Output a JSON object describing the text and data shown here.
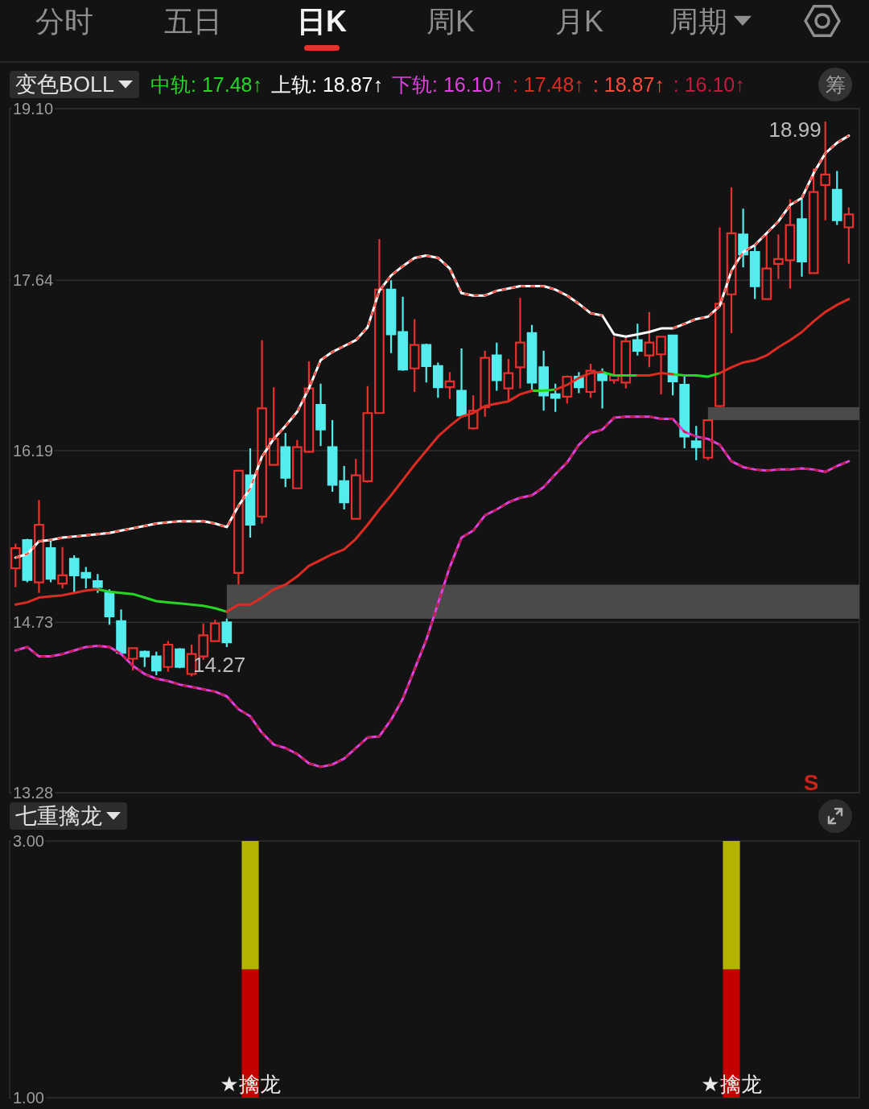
{
  "chart_data": [
    {
      "type": "other",
      "annotations": [
        "分时",
        "五日",
        "日K",
        "周K",
        "月K",
        "周期"
      ]
    },
    {
      "type": "candlestick",
      "title": "变色BOLL",
      "categories": [
        null,
        null,
        null,
        null,
        null,
        null,
        null,
        null,
        null,
        null,
        null,
        null,
        null,
        null,
        null,
        null,
        null,
        null,
        null,
        null,
        null,
        null,
        null,
        null,
        null,
        null,
        null,
        null,
        null,
        null,
        null,
        null,
        null,
        null,
        null,
        null,
        null,
        null,
        null,
        null,
        null,
        null,
        null,
        null,
        null,
        null,
        null,
        null,
        null,
        null,
        null,
        null,
        null,
        null,
        null,
        null,
        null,
        null,
        null,
        null,
        null,
        null,
        null,
        null,
        null,
        null,
        null,
        null,
        null,
        null,
        null,
        null
      ],
      "ohlc": [
        [
          15.19,
          15.4,
          15.03,
          15.36
        ],
        [
          15.43,
          15.44,
          15.07,
          15.09
        ],
        [
          15.07,
          15.77,
          14.98,
          15.56
        ],
        [
          15.36,
          15.44,
          15.07,
          15.1
        ],
        [
          15.06,
          15.37,
          15.02,
          15.13
        ],
        [
          15.27,
          15.3,
          14.98,
          15.13
        ],
        [
          15.15,
          15.2,
          15.02,
          15.11
        ],
        [
          15.08,
          15.14,
          14.98,
          15.03
        ],
        [
          14.98,
          15.01,
          14.71,
          14.78
        ],
        [
          14.74,
          14.84,
          14.46,
          14.47
        ],
        [
          14.42,
          14.51,
          14.32,
          14.51
        ],
        [
          14.48,
          14.49,
          14.35,
          14.44
        ],
        [
          14.44,
          14.48,
          14.28,
          14.32
        ],
        [
          14.35,
          14.57,
          14.31,
          14.54
        ],
        [
          14.5,
          14.51,
          14.34,
          14.35
        ],
        [
          14.29,
          14.54,
          14.27,
          14.46
        ],
        [
          14.44,
          14.72,
          14.41,
          14.62
        ],
        [
          14.57,
          14.75,
          14.57,
          14.72
        ],
        [
          14.73,
          14.76,
          14.52,
          14.56
        ],
        [
          15.15,
          16.02,
          15.05,
          16.02
        ],
        [
          15.98,
          16.21,
          15.45,
          15.56
        ],
        [
          15.63,
          17.13,
          15.57,
          16.55
        ],
        [
          16.07,
          16.73,
          16.07,
          16.29
        ],
        [
          16.22,
          16.34,
          15.88,
          15.96
        ],
        [
          15.87,
          16.28,
          15.87,
          16.22
        ],
        [
          16.18,
          16.95,
          16.18,
          16.72
        ],
        [
          16.58,
          16.76,
          16.23,
          16.37
        ],
        [
          16.22,
          16.45,
          15.84,
          15.9
        ],
        [
          15.93,
          16.06,
          15.69,
          15.75
        ],
        [
          15.61,
          16.12,
          15.61,
          15.98
        ],
        [
          15.93,
          16.74,
          15.92,
          16.51
        ],
        [
          16.51,
          17.99,
          16.51,
          17.56
        ],
        [
          17.56,
          17.64,
          17.02,
          17.18
        ],
        [
          17.2,
          17.5,
          16.87,
          16.88
        ],
        [
          16.89,
          17.31,
          16.69,
          17.09
        ],
        [
          17.09,
          17.1,
          16.77,
          16.91
        ],
        [
          16.91,
          16.94,
          16.64,
          16.73
        ],
        [
          16.73,
          16.86,
          16.63,
          16.78
        ],
        [
          16.7,
          17.06,
          16.49,
          16.49
        ],
        [
          16.38,
          16.66,
          16.37,
          16.53
        ],
        [
          16.56,
          17.04,
          16.48,
          16.98
        ],
        [
          17.0,
          17.11,
          16.7,
          16.79
        ],
        [
          16.72,
          16.97,
          16.62,
          16.85
        ],
        [
          16.9,
          17.49,
          16.72,
          17.11
        ],
        [
          17.19,
          17.26,
          16.71,
          16.77
        ],
        [
          16.9,
          17.04,
          16.53,
          16.66
        ],
        [
          16.67,
          16.76,
          16.52,
          16.64
        ],
        [
          16.65,
          16.83,
          16.59,
          16.82
        ],
        [
          16.82,
          16.86,
          16.68,
          16.73
        ],
        [
          16.69,
          16.93,
          16.64,
          16.87
        ],
        [
          16.84,
          16.89,
          16.55,
          16.79
        ],
        [
          16.79,
          17.16,
          16.76,
          16.83
        ],
        [
          16.77,
          17.15,
          16.72,
          17.12
        ],
        [
          17.13,
          17.27,
          17.0,
          17.04
        ],
        [
          17.0,
          17.37,
          16.9,
          17.11
        ],
        [
          17.01,
          17.16,
          16.67,
          17.16
        ],
        [
          17.17,
          17.17,
          16.66,
          16.78
        ],
        [
          16.75,
          16.82,
          16.21,
          16.31
        ],
        [
          16.27,
          16.4,
          16.11,
          16.22
        ],
        [
          16.13,
          16.45,
          16.11,
          16.45
        ],
        [
          16.57,
          18.09,
          16.56,
          17.44
        ],
        [
          17.52,
          18.43,
          17.19,
          18.04
        ],
        [
          18.03,
          18.25,
          17.75,
          17.86
        ],
        [
          17.88,
          17.94,
          17.48,
          17.59
        ],
        [
          17.48,
          18.04,
          17.48,
          17.74
        ],
        [
          17.78,
          18.03,
          17.65,
          17.82
        ],
        [
          17.81,
          18.33,
          17.57,
          18.11
        ],
        [
          18.16,
          18.34,
          17.67,
          17.8
        ],
        [
          17.7,
          18.59,
          17.7,
          18.39
        ],
        [
          18.45,
          18.99,
          18.15,
          18.54
        ],
        [
          18.41,
          18.57,
          18.11,
          18.15
        ],
        [
          18.09,
          18.26,
          17.78,
          18.2
        ]
      ],
      "colors": [
        "#e8312f",
        "#54eded",
        "#e8312f",
        "#54eded",
        "#e8312f",
        "#54eded",
        "#54eded",
        "#54eded",
        "#54eded",
        "#54eded",
        "#e8312f",
        "#54eded",
        "#54eded",
        "#e8312f",
        "#54eded",
        "#e8312f",
        "#e8312f",
        "#e8312f",
        "#54eded",
        "#e8312f",
        "#54eded",
        "#e8312f",
        "#e8312f",
        "#54eded",
        "#e8312f",
        "#e8312f",
        "#54eded",
        "#54eded",
        "#54eded",
        "#e8312f",
        "#e8312f",
        "#e8312f",
        "#54eded",
        "#54eded",
        "#e8312f",
        "#54eded",
        "#54eded",
        "#e8312f",
        "#54eded",
        "#e8312f",
        "#e8312f",
        "#54eded",
        "#e8312f",
        "#e8312f",
        "#54eded",
        "#54eded",
        "#54eded",
        "#e8312f",
        "#54eded",
        "#e8312f",
        "#54eded",
        "#e8312f",
        "#e8312f",
        "#54eded",
        "#e8312f",
        "#e8312f",
        "#54eded",
        "#54eded",
        "#54eded",
        "#e8312f",
        "#e8312f",
        "#e8312f",
        "#54eded",
        "#54eded",
        "#e8312f",
        "#e8312f",
        "#e8312f",
        "#54eded",
        "#e8312f",
        "#e8312f",
        "#54eded",
        "#e8312f"
      ],
      "bands": [
        {
          "axis": "y",
          "from": 14.76,
          "to": 15.05,
          "color": "#4a4a4a"
        },
        {
          "axis": "y",
          "from": 16.45,
          "to": 16.56,
          "color": "#4a4a4a"
        }
      ],
      "series": [
        {
          "name": "中轨: 17.48↑",
          "type": "line",
          "color": "#25d625",
          "values": [
            null,
            null,
            null,
            null,
            null,
            null,
            null,
            15.01,
            14.99,
            14.98,
            14.97,
            14.94,
            14.91,
            14.9,
            14.89,
            14.88,
            14.87,
            14.85,
            14.82,
            null,
            null,
            null,
            null,
            null,
            null,
            null,
            null,
            null,
            null,
            null,
            null,
            null,
            null,
            null,
            null,
            null,
            null,
            null,
            null,
            null,
            null,
            null,
            null,
            null,
            16.7,
            16.7,
            16.71,
            null,
            null,
            null,
            16.86,
            16.83,
            16.83,
            16.83,
            null,
            null,
            16.84,
            16.83,
            16.83,
            16.82,
            16.85,
            null,
            null,
            null,
            null,
            null,
            null,
            null,
            null,
            null,
            null,
            null
          ]
        },
        {
          "name": "上轨: 18.87↑",
          "type": "line",
          "color": "#ffffff",
          "values": [
            15.28,
            15.31,
            15.42,
            15.43,
            15.45,
            15.46,
            15.47,
            15.48,
            15.49,
            15.51,
            15.53,
            15.55,
            15.57,
            15.58,
            15.59,
            15.59,
            15.59,
            15.57,
            15.54,
            15.72,
            15.87,
            16.14,
            16.29,
            16.4,
            16.52,
            16.72,
            16.96,
            17.03,
            17.08,
            17.13,
            17.24,
            17.55,
            17.68,
            17.76,
            17.83,
            17.85,
            17.83,
            17.74,
            17.53,
            17.51,
            17.51,
            17.55,
            17.57,
            17.59,
            17.59,
            17.59,
            17.56,
            17.51,
            17.44,
            17.36,
            17.34,
            17.18,
            17.16,
            17.18,
            17.2,
            17.23,
            17.23,
            17.27,
            17.31,
            17.33,
            17.42,
            17.72,
            17.88,
            17.94,
            18.04,
            18.14,
            18.28,
            18.34,
            18.55,
            18.72,
            18.81,
            18.87
          ]
        },
        {
          "name": "下轨: 16.10↑",
          "type": "line",
          "color": "#e040e0",
          "values": [
            14.49,
            14.52,
            14.44,
            14.44,
            14.46,
            14.49,
            14.52,
            14.53,
            14.52,
            14.46,
            14.36,
            14.29,
            14.25,
            14.23,
            14.2,
            14.18,
            14.16,
            14.14,
            14.1,
            13.99,
            13.93,
            13.79,
            13.69,
            13.66,
            13.61,
            13.53,
            13.5,
            13.52,
            13.57,
            13.66,
            13.75,
            13.76,
            13.9,
            14.08,
            14.33,
            14.58,
            14.89,
            15.2,
            15.45,
            15.51,
            15.64,
            15.69,
            15.75,
            15.79,
            15.81,
            15.88,
            15.99,
            16.09,
            16.24,
            16.34,
            16.37,
            16.47,
            16.48,
            16.48,
            16.48,
            16.46,
            16.46,
            16.35,
            16.31,
            16.29,
            16.24,
            16.1,
            16.05,
            16.03,
            16.02,
            16.03,
            16.03,
            16.04,
            16.03,
            16.01,
            16.06,
            16.1
          ]
        },
        {
          "name": ": 17.48↑",
          "type": "line",
          "color": "#dc2b22",
          "values": [
            14.88,
            14.9,
            14.94,
            14.95,
            14.96,
            14.98,
            15.0,
            15.01,
            null,
            null,
            null,
            null,
            null,
            null,
            null,
            null,
            null,
            null,
            14.82,
            14.88,
            14.88,
            14.94,
            15.01,
            15.05,
            15.12,
            15.21,
            15.26,
            15.31,
            15.35,
            15.44,
            15.56,
            15.69,
            15.81,
            15.94,
            16.07,
            16.19,
            16.31,
            16.4,
            16.48,
            16.51,
            16.57,
            16.59,
            16.61,
            16.67,
            16.7,
            null,
            16.71,
            16.75,
            16.81,
            16.85,
            16.86,
            null,
            null,
            16.83,
            16.83,
            16.85,
            16.84,
            null,
            null,
            null,
            16.85,
            16.9,
            16.94,
            16.96,
            17.0,
            17.07,
            17.13,
            17.2,
            17.29,
            17.37,
            17.43,
            17.48
          ]
        },
        {
          "name": ": 18.87↑",
          "type": "line",
          "color": "#ff4a3c",
          "line_style": "dashed",
          "values": [
            15.28,
            15.31,
            15.42,
            15.43,
            15.45,
            15.46,
            15.47,
            15.48,
            15.49,
            15.51,
            15.53,
            15.55,
            15.57,
            15.58,
            15.59,
            15.59,
            15.59,
            15.57,
            15.54,
            15.72,
            15.87,
            16.14,
            16.29,
            16.4,
            16.52,
            16.72,
            16.96,
            17.03,
            17.08,
            17.13,
            17.24,
            17.55,
            17.68,
            17.76,
            17.83,
            17.85,
            17.83,
            17.74,
            17.53,
            17.51,
            17.51,
            17.55,
            17.57,
            17.59,
            17.59,
            17.59,
            17.56,
            17.51,
            17.44,
            17.36,
            17.34,
            null,
            null,
            null,
            null,
            null,
            17.23,
            17.27,
            17.31,
            17.33,
            17.42,
            17.72,
            17.88,
            17.94,
            18.04,
            18.14,
            18.28,
            18.34,
            18.55,
            18.72,
            18.81,
            18.87
          ]
        },
        {
          "name": ": 16.10↑",
          "type": "line",
          "color": "#c4183c",
          "line_style": "dashed",
          "values": [
            14.49,
            14.52,
            14.44,
            14.44,
            14.46,
            14.49,
            14.52,
            14.53,
            14.52,
            14.46,
            14.36,
            14.29,
            14.25,
            14.23,
            14.2,
            14.18,
            14.16,
            14.14,
            14.1,
            13.99,
            13.93,
            13.79,
            13.69,
            13.66,
            13.61,
            13.53,
            13.5,
            13.52,
            13.57,
            13.66,
            13.75,
            13.76,
            13.9,
            14.08,
            14.33,
            14.58,
            14.89,
            15.2,
            15.45,
            15.51,
            15.64,
            15.69,
            15.75,
            15.79,
            15.81,
            15.88,
            15.99,
            16.09,
            16.24,
            16.34,
            16.37,
            16.47,
            16.48,
            16.48,
            16.48,
            16.46,
            16.46,
            16.35,
            16.31,
            16.29,
            16.24,
            16.1,
            16.05,
            16.03,
            16.02,
            16.03,
            16.03,
            16.04,
            16.03,
            16.01,
            16.06,
            16.1
          ]
        }
      ],
      "ylim": [
        13.28,
        19.1
      ],
      "yticks": [
        {
          "value": 19.1,
          "label": "19.10"
        },
        17.64,
        16.19,
        14.73,
        13.28
      ],
      "grid": "y",
      "legend": "top left",
      "tick_labels": "y",
      "annotations": [
        "18.99",
        "14.27",
        "S",
        "筹"
      ]
    },
    {
      "type": "bar",
      "title": "七重擒龙",
      "categories": [
        null,
        null,
        null,
        null,
        null,
        null,
        null,
        null,
        null,
        null,
        null,
        null,
        null,
        null,
        null,
        null,
        null,
        null,
        null,
        null,
        null,
        null,
        null,
        null,
        null,
        null,
        null,
        null,
        null,
        null,
        null,
        null,
        null,
        null,
        null,
        null,
        null,
        null,
        null,
        null,
        null,
        null,
        null,
        null,
        null,
        null,
        null,
        null,
        null,
        null,
        null,
        null,
        null,
        null,
        null,
        null,
        null,
        null,
        null,
        null,
        null,
        null,
        null,
        null,
        null,
        null,
        null,
        null,
        null,
        null,
        null,
        null
      ],
      "stacked": true,
      "series": [
        {
          "color": "#c40000",
          "values": [
            null,
            null,
            null,
            null,
            null,
            null,
            null,
            null,
            null,
            null,
            null,
            null,
            null,
            null,
            null,
            null,
            null,
            null,
            null,
            null,
            2,
            null,
            null,
            null,
            null,
            null,
            null,
            null,
            null,
            null,
            null,
            null,
            null,
            null,
            null,
            null,
            null,
            null,
            null,
            null,
            null,
            null,
            null,
            null,
            null,
            null,
            null,
            null,
            null,
            null,
            null,
            null,
            null,
            null,
            null,
            null,
            null,
            null,
            null,
            null,
            null,
            2,
            null,
            null,
            null,
            null,
            null,
            null,
            null,
            null,
            null,
            null
          ]
        },
        {
          "color": "#b3b300",
          "values": [
            null,
            null,
            null,
            null,
            null,
            null,
            null,
            null,
            null,
            null,
            null,
            null,
            null,
            null,
            null,
            null,
            null,
            null,
            null,
            null,
            1,
            null,
            null,
            null,
            null,
            null,
            null,
            null,
            null,
            null,
            null,
            null,
            null,
            null,
            null,
            null,
            null,
            null,
            null,
            null,
            null,
            null,
            null,
            null,
            null,
            null,
            null,
            null,
            null,
            null,
            null,
            null,
            null,
            null,
            null,
            null,
            null,
            null,
            null,
            null,
            null,
            1,
            null,
            null,
            null,
            null,
            null,
            null,
            null,
            null,
            null,
            null
          ]
        }
      ],
      "ylim": [
        1,
        3
      ],
      "yticks": [
        {
          "value": 1,
          "label": "1.00"
        },
        {
          "value": 3,
          "label": "3.00"
        }
      ],
      "tick_labels": "y",
      "annotations": [
        "★擒龙",
        "★擒龙"
      ]
    }
  ]
}
